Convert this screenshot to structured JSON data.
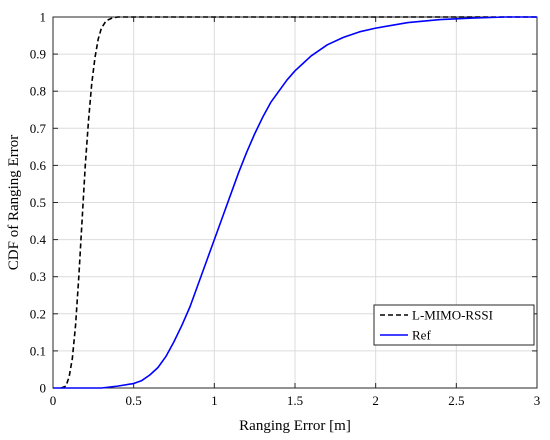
{
  "chart_data": {
    "type": "line",
    "xlabel": "Ranging Error [m]",
    "ylabel": "CDF of Ranging Error",
    "xlim": [
      0,
      3
    ],
    "ylim": [
      0,
      1
    ],
    "xticks": [
      "0",
      "0.5",
      "1",
      "1.5",
      "2",
      "2.5",
      "3"
    ],
    "yticks": [
      "0",
      "0.1",
      "0.2",
      "0.3",
      "0.4",
      "0.5",
      "0.6",
      "0.7",
      "0.8",
      "0.9",
      "1"
    ],
    "grid": true,
    "legend_position": "bottom-right",
    "series": [
      {
        "name": "L-MIMO-RSSI",
        "color": "#000000",
        "style": "dashed",
        "points": [
          [
            0.05,
            0
          ],
          [
            0.08,
            0.005
          ],
          [
            0.1,
            0.03
          ],
          [
            0.12,
            0.08
          ],
          [
            0.14,
            0.17
          ],
          [
            0.16,
            0.3
          ],
          [
            0.18,
            0.45
          ],
          [
            0.2,
            0.6
          ],
          [
            0.22,
            0.72
          ],
          [
            0.24,
            0.82
          ],
          [
            0.26,
            0.89
          ],
          [
            0.28,
            0.94
          ],
          [
            0.3,
            0.97
          ],
          [
            0.33,
            0.99
          ],
          [
            0.36,
            0.996
          ],
          [
            0.4,
            1.0
          ],
          [
            0.5,
            1.0
          ],
          [
            1.0,
            1.0
          ],
          [
            2.0,
            1.0
          ],
          [
            3.0,
            1.0
          ]
        ]
      },
      {
        "name": "Ref",
        "color": "#0000ff",
        "style": "solid",
        "points": [
          [
            0,
            0
          ],
          [
            0.3,
            0
          ],
          [
            0.4,
            0.005
          ],
          [
            0.5,
            0.012
          ],
          [
            0.55,
            0.02
          ],
          [
            0.6,
            0.035
          ],
          [
            0.65,
            0.055
          ],
          [
            0.7,
            0.085
          ],
          [
            0.75,
            0.125
          ],
          [
            0.8,
            0.17
          ],
          [
            0.85,
            0.22
          ],
          [
            0.9,
            0.28
          ],
          [
            0.95,
            0.34
          ],
          [
            1.0,
            0.4
          ],
          [
            1.05,
            0.46
          ],
          [
            1.1,
            0.52
          ],
          [
            1.15,
            0.58
          ],
          [
            1.2,
            0.635
          ],
          [
            1.25,
            0.685
          ],
          [
            1.3,
            0.73
          ],
          [
            1.35,
            0.77
          ],
          [
            1.4,
            0.8
          ],
          [
            1.45,
            0.83
          ],
          [
            1.5,
            0.855
          ],
          [
            1.55,
            0.875
          ],
          [
            1.6,
            0.895
          ],
          [
            1.7,
            0.925
          ],
          [
            1.8,
            0.945
          ],
          [
            1.9,
            0.96
          ],
          [
            2.0,
            0.97
          ],
          [
            2.2,
            0.985
          ],
          [
            2.4,
            0.993
          ],
          [
            2.6,
            0.997
          ],
          [
            2.8,
            1.0
          ],
          [
            3.0,
            1.0
          ]
        ]
      }
    ]
  }
}
